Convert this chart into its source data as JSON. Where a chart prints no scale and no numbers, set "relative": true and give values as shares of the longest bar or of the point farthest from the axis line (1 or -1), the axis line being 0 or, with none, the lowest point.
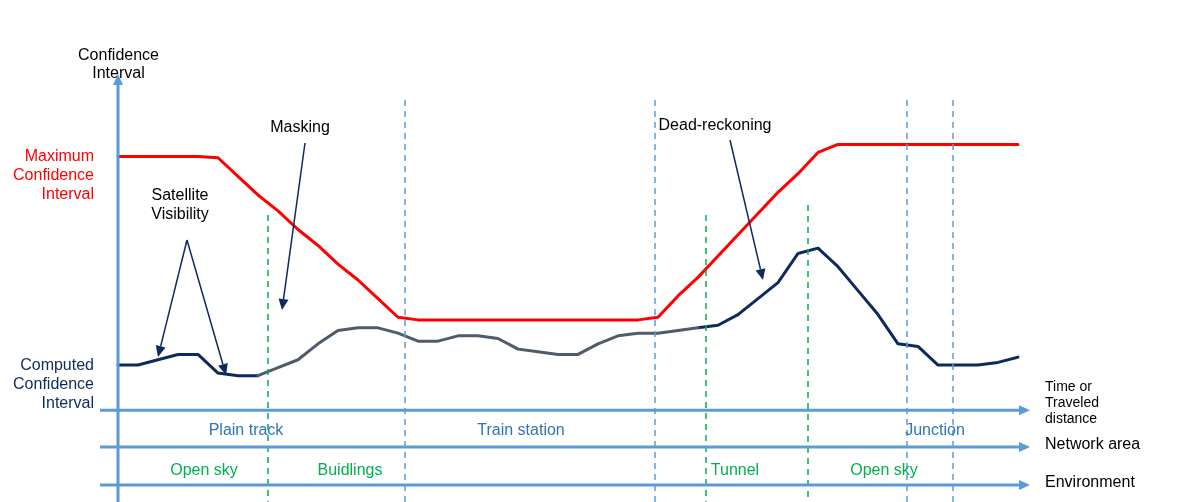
{
  "chart_data": {
    "type": "line",
    "relative": true,
    "ylabel": "Confidence Interval",
    "xlabel": "Time or Traveled distance",
    "tick_labels": false,
    "categories": [
      null,
      null,
      null,
      null,
      null,
      null,
      null,
      null,
      null,
      null,
      null,
      null,
      null,
      null,
      null,
      null,
      null,
      null,
      null,
      null,
      null,
      null,
      null,
      null,
      null,
      null,
      null,
      null,
      null,
      null,
      null,
      null,
      null,
      null,
      null,
      null,
      null,
      null,
      null,
      null,
      null,
      null,
      null,
      null,
      null,
      null
    ],
    "series": [
      {
        "name": "Maximum Confidence Interval",
        "color": "#ff0000",
        "values": [
          0.955,
          0.955,
          0.955,
          0.955,
          0.955,
          0.95,
          0.88,
          0.81,
          0.75,
          0.68,
          0.62,
          0.55,
          0.49,
          0.42,
          0.35,
          0.34,
          0.34,
          0.34,
          0.34,
          0.34,
          0.34,
          0.34,
          0.34,
          0.34,
          0.34,
          0.34,
          0.34,
          0.35,
          0.43,
          0.5,
          0.58,
          0.66,
          0.74,
          0.82,
          0.89,
          0.97,
          1,
          1,
          1,
          1,
          1,
          1,
          1,
          1,
          1,
          1
        ]
      },
      {
        "name": "Computed Confidence Interval",
        "color": "#0d2a5c",
        "values": [
          0.17,
          0.17,
          0.19,
          0.21,
          0.21,
          0.14,
          0.13,
          0.13,
          null,
          null,
          null,
          null,
          null,
          null,
          null,
          null,
          null,
          null,
          null,
          null,
          null,
          null,
          null,
          null,
          null,
          null,
          null,
          null,
          null,
          0.31,
          0.32,
          0.36,
          0.42,
          0.48,
          0.59,
          0.61,
          0.54,
          0.45,
          0.36,
          0.25,
          0.24,
          0.17,
          0.17,
          0.17,
          0.18,
          0.2
        ]
      },
      {
        "color": "#4f5b6b",
        "values": [
          null,
          null,
          null,
          null,
          null,
          null,
          null,
          0.13,
          0.16,
          0.19,
          0.25,
          0.3,
          0.31,
          0.31,
          0.29,
          0.26,
          0.26,
          0.28,
          0.28,
          0.27,
          0.23,
          0.22,
          0.21,
          0.21,
          0.25,
          0.28,
          0.29,
          0.29,
          0.3,
          0.31,
          null,
          null,
          null,
          null,
          null,
          null,
          null,
          null,
          null,
          null,
          null,
          null,
          null,
          null,
          null,
          null
        ]
      }
    ],
    "annotations": [
      "Satellite Visibility",
      "Masking",
      "Dead-reckoning",
      "Plain track",
      "Train station",
      "Junction",
      "Open sky",
      "Buidlings",
      "Tunnel",
      "Open sky",
      "Network area",
      "Environment"
    ]
  }
}
